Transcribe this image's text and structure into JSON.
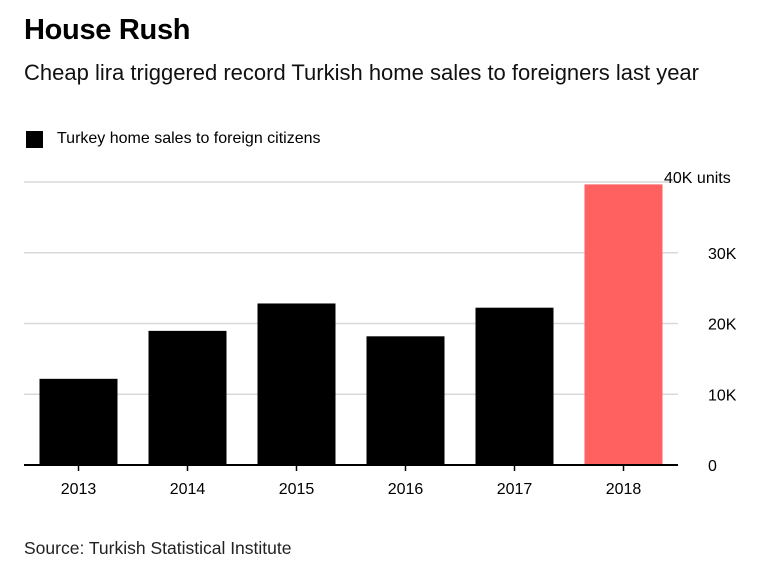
{
  "title": "House Rush",
  "subtitle": "Cheap lira triggered record Turkish home sales to foreigners last year",
  "source": "Source: Turkish Statistical Institute",
  "colors": {
    "bar": "#000000",
    "highlight": "#ff6161",
    "grid": "#d9d9d9"
  },
  "chart_data": {
    "type": "bar",
    "title": "House Rush",
    "subtitle": "Cheap lira triggered record Turkish home sales to foreigners last year",
    "categories": [
      "2013",
      "2014",
      "2015",
      "2016",
      "2017",
      "2018"
    ],
    "series": [
      {
        "name": "Turkey home sales to foreign citizens",
        "values": [
          12181,
          18959,
          22830,
          18189,
          22234,
          39663
        ]
      }
    ],
    "highlight_category": "2018",
    "ylim": [
      0,
      40000
    ],
    "yticks": [
      0,
      10000,
      20000,
      30000,
      40000
    ],
    "ytick_labels": [
      "0",
      "10K",
      "20K",
      "30K",
      "40K units"
    ],
    "y_axis_position": "right",
    "grid": true,
    "legend_position": "top-left"
  }
}
